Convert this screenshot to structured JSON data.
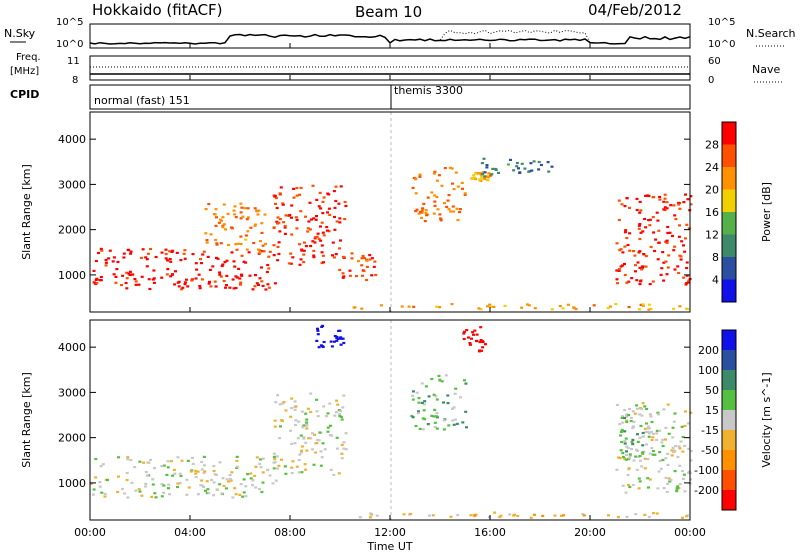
{
  "header": {
    "station": "Hokkaido (fitACF)",
    "beam": "Beam 10",
    "date": "04/Feb/2012"
  },
  "top_panel": {
    "left_label": "N.Sky",
    "right_label": "N.Search",
    "left_ticks": [
      "10^5",
      "10^0"
    ],
    "right_ticks": [
      "10^5",
      "10^0"
    ]
  },
  "freq_panel": {
    "left_label_1": "Freq.",
    "left_label_2": "[MHz]",
    "left_ticks": [
      "11",
      "8"
    ],
    "right_label": "Nave",
    "right_ticks": [
      "60",
      "0"
    ]
  },
  "cpid_panel": {
    "label": "CPID",
    "modes": [
      "normal (fast) 151",
      "themis 3300"
    ]
  },
  "power_panel": {
    "ylabel": "Slant Range [km]",
    "yticks": [
      "1000",
      "2000",
      "3000",
      "4000"
    ],
    "colorbar_label": "Power [dB]",
    "colorbar_ticks": [
      "4",
      "8",
      "12",
      "16",
      "20",
      "24",
      "28"
    ],
    "colors": [
      "#1010e8",
      "#2a4fa0",
      "#3c8a6a",
      "#55b04a",
      "#f0d000",
      "#ff9000",
      "#ff5000",
      "#ff0000"
    ]
  },
  "velocity_panel": {
    "ylabel": "Slant Range [km]",
    "yticks": [
      "1000",
      "2000",
      "3000",
      "4000"
    ],
    "colorbar_label": "Velocity [m s^-1]",
    "colorbar_ticks": [
      "-200",
      "-100",
      "-50",
      "-15",
      "15",
      "50",
      "100",
      "200"
    ],
    "colors": [
      "#ff0000",
      "#ff5000",
      "#ff9000",
      "#f0b030",
      "#c8c8c8",
      "#55c040",
      "#3c8a6a",
      "#2a4fa0",
      "#1010e8"
    ]
  },
  "xaxis": {
    "label": "Time UT",
    "ticks": [
      "00:00",
      "04:00",
      "08:00",
      "12:00",
      "16:00",
      "20:00",
      "00:00"
    ]
  },
  "chart_data": [
    {
      "type": "heatmap",
      "title": "Power [dB]",
      "xlabel": "Time UT",
      "ylabel": "Slant Range [km]",
      "xlim": [
        0,
        24
      ],
      "ylim": [
        180,
        4600
      ],
      "clim": [
        0,
        30
      ],
      "regions": [
        {
          "t0": 0.0,
          "t1": 7.5,
          "r0": 700,
          "r1": 1600,
          "value": 28
        },
        {
          "t0": 7.3,
          "t1": 10.2,
          "r0": 1200,
          "r1": 3000,
          "value": 26
        },
        {
          "t0": 4.5,
          "t1": 7.0,
          "r0": 1500,
          "r1": 2600,
          "value": 22
        },
        {
          "t0": 9.8,
          "t1": 11.5,
          "r0": 900,
          "r1": 1500,
          "value": 25
        },
        {
          "t0": 10.5,
          "t1": 24.0,
          "r0": 250,
          "r1": 380,
          "value": 20
        },
        {
          "t0": 12.8,
          "t1": 15.0,
          "r0": 2200,
          "r1": 3400,
          "value": 22
        },
        {
          "t0": 15.2,
          "t1": 16.0,
          "r0": 3100,
          "r1": 3300,
          "value": 20
        },
        {
          "t0": 15.5,
          "t1": 18.5,
          "r0": 3200,
          "r1": 3600,
          "value": 8
        },
        {
          "t0": 21.0,
          "t1": 24.0,
          "r0": 800,
          "r1": 2800,
          "value": 27
        }
      ]
    },
    {
      "type": "heatmap",
      "title": "Velocity [m s^-1]",
      "xlabel": "Time UT",
      "ylabel": "Slant Range [km]",
      "xlim": [
        0,
        24
      ],
      "ylim": [
        180,
        4600
      ],
      "clim": [
        -200,
        200
      ],
      "regions": [
        {
          "t0": 0.0,
          "t1": 7.5,
          "r0": 700,
          "r1": 1600,
          "value": 0
        },
        {
          "t0": 7.3,
          "t1": 10.2,
          "r0": 1200,
          "r1": 3000,
          "value": 0
        },
        {
          "t0": 9.0,
          "t1": 10.2,
          "r0": 4000,
          "r1": 4500,
          "value": 200
        },
        {
          "t0": 10.5,
          "t1": 24.0,
          "r0": 250,
          "r1": 380,
          "value": -30
        },
        {
          "t0": 12.8,
          "t1": 15.0,
          "r0": 2200,
          "r1": 3400,
          "value": 40
        },
        {
          "t0": 14.8,
          "t1": 15.8,
          "r0": 3900,
          "r1": 4500,
          "value": -220
        },
        {
          "t0": 21.0,
          "t1": 24.0,
          "r0": 800,
          "r1": 2800,
          "value": 0
        },
        {
          "t0": 21.2,
          "t1": 22.5,
          "r0": 1500,
          "r1": 2800,
          "value": 40
        }
      ]
    }
  ]
}
